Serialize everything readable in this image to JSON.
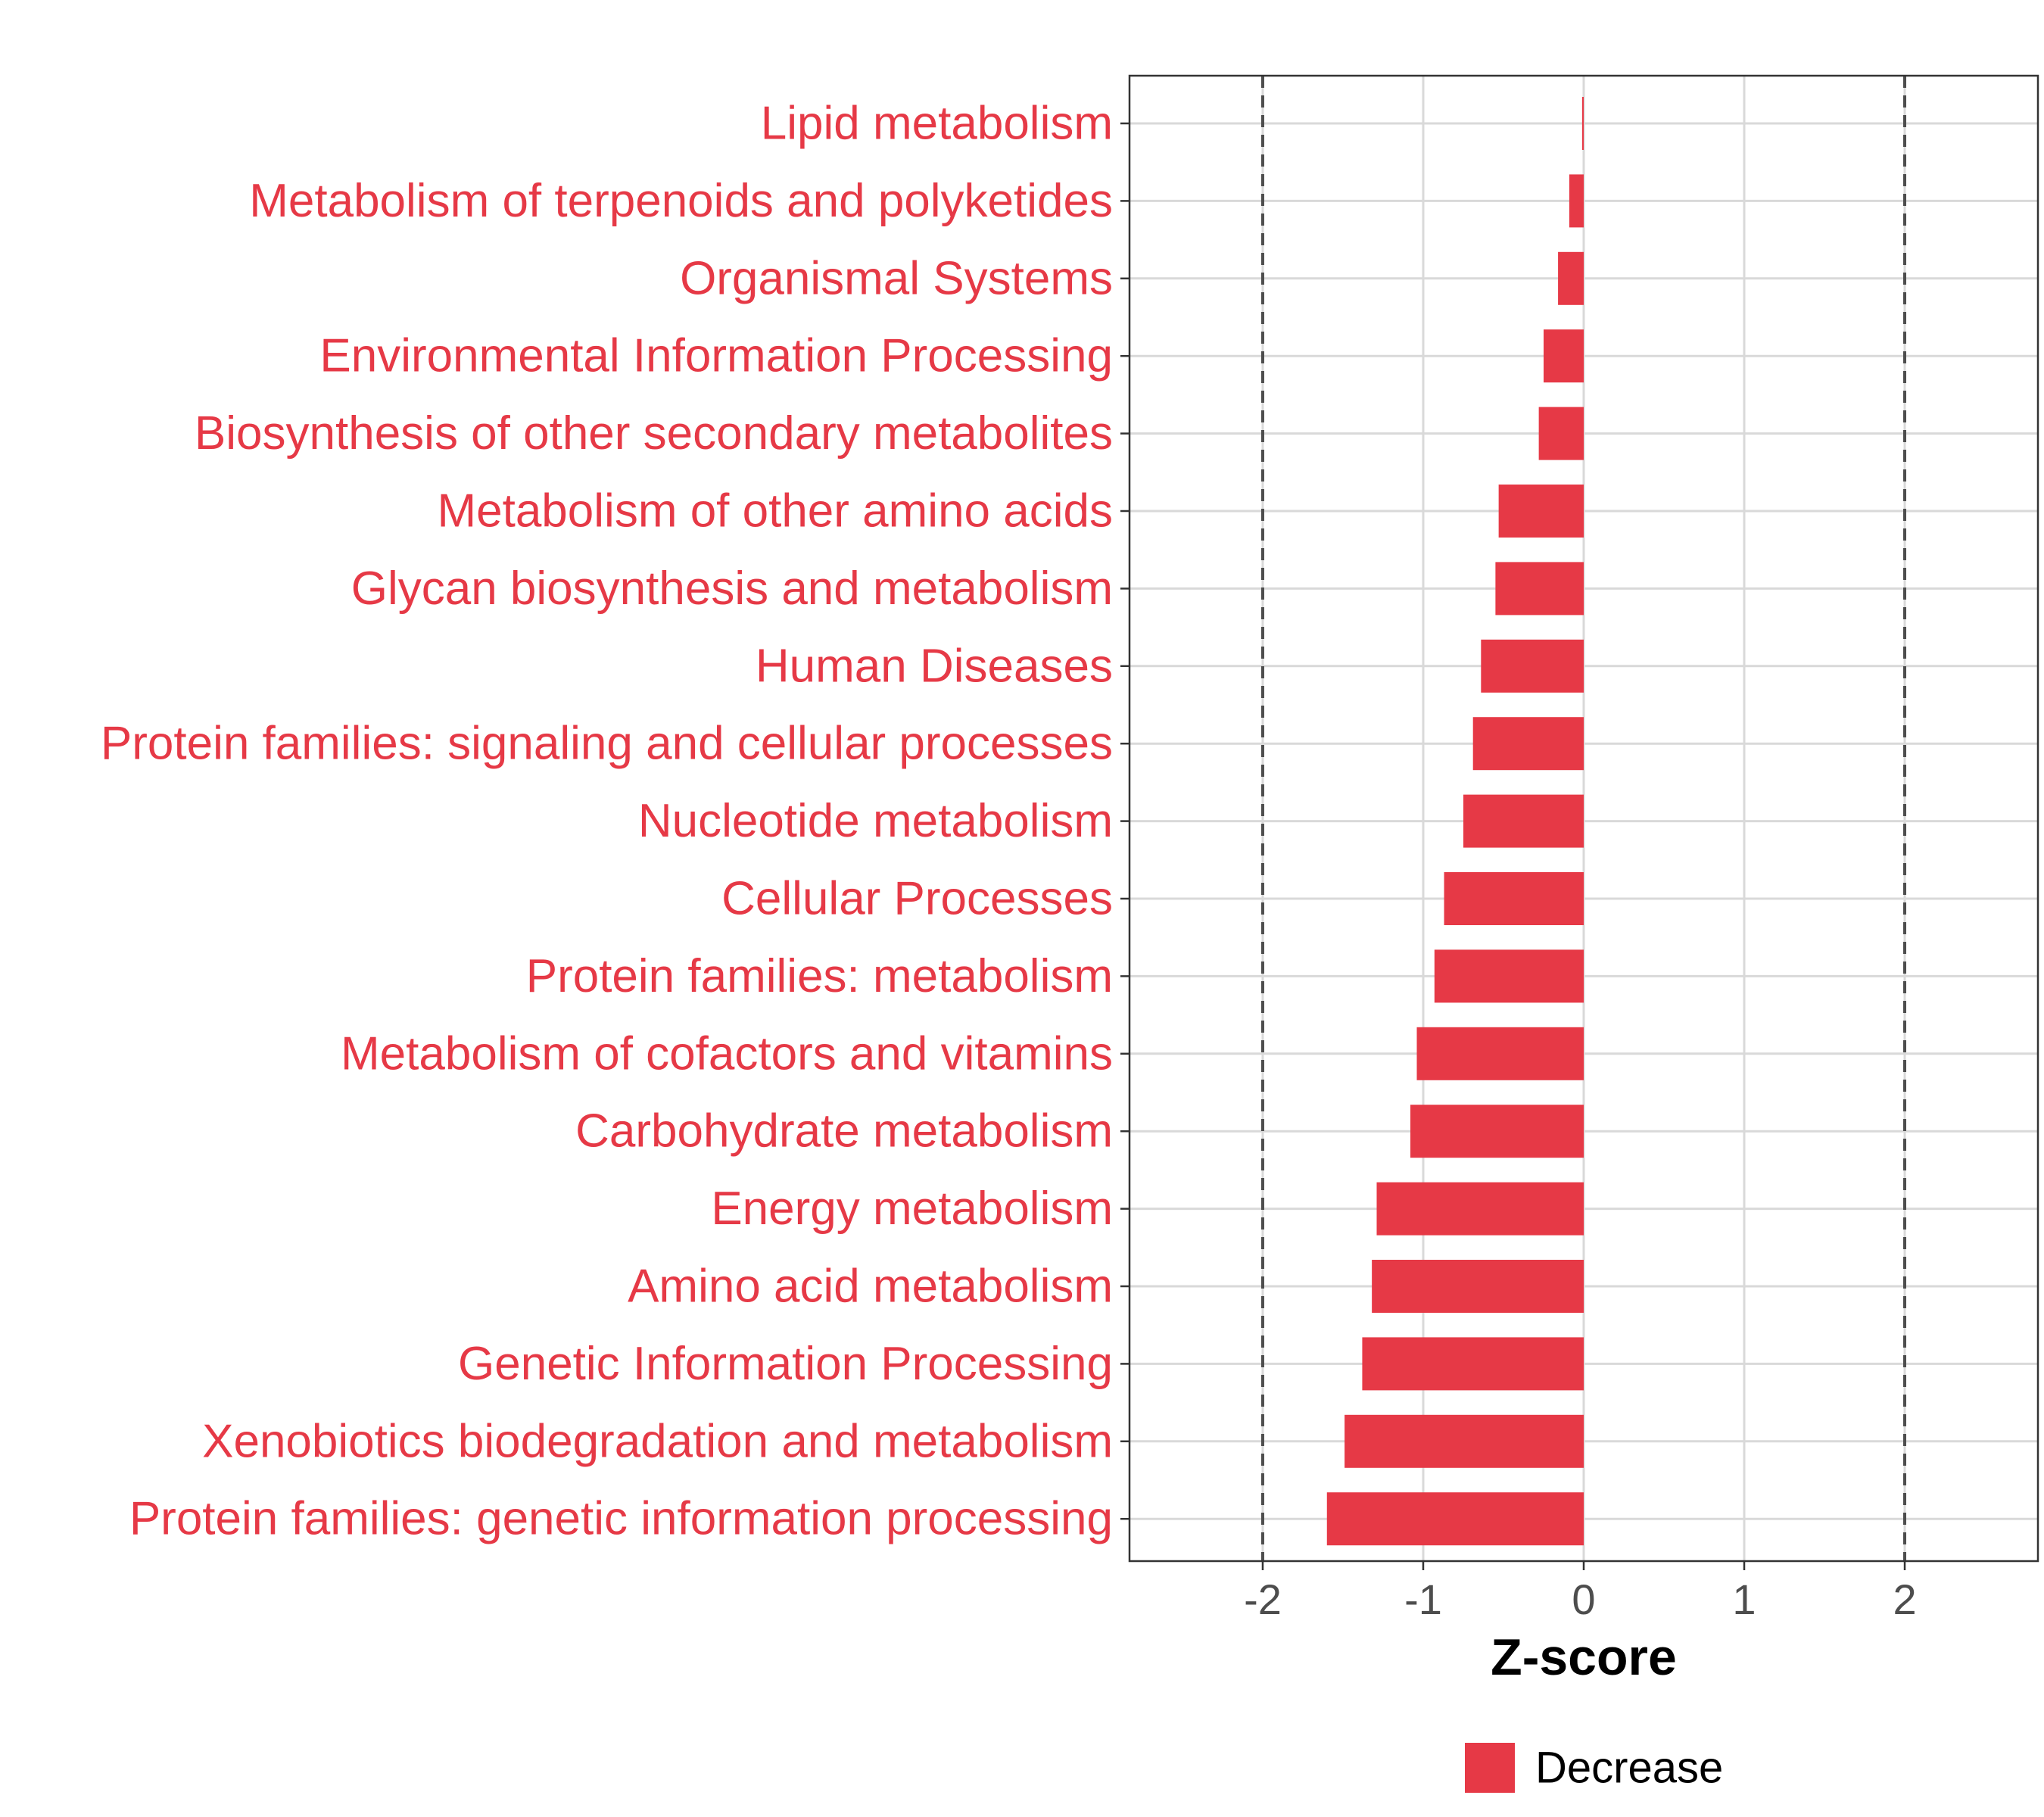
{
  "chart_data": {
    "type": "bar",
    "orientation": "horizontal",
    "categories": [
      "Lipid metabolism",
      "Metabolism of terpenoids and polyketides",
      "Organismal Systems",
      "Environmental Information Processing",
      "Biosynthesis of other secondary metabolites",
      "Metabolism of other amino acids",
      "Glycan biosynthesis and metabolism",
      "Human Diseases",
      "Protein families: signaling and cellular processes",
      "Nucleotide metabolism",
      "Cellular Processes",
      "Protein families: metabolism",
      "Metabolism of cofactors and vitamins",
      "Carbohydrate metabolism",
      "Energy metabolism",
      "Amino acid metabolism",
      "Genetic Information Processing",
      "Xenobiotics biodegradation and metabolism",
      "Protein families: genetic information processing"
    ],
    "values": [
      -0.01,
      -0.09,
      -0.16,
      -0.25,
      -0.28,
      -0.53,
      -0.55,
      -0.64,
      -0.69,
      -0.75,
      -0.87,
      -0.93,
      -1.04,
      -1.08,
      -1.29,
      -1.32,
      -1.38,
      -1.49,
      -1.6
    ],
    "xlabel": "Z-score",
    "xlim": [
      -2.83,
      2.83
    ],
    "xticks": [
      "-2",
      "-1",
      "0",
      "1",
      "2"
    ],
    "xtick_values": [
      -2,
      -1,
      0,
      1,
      2
    ],
    "reference_lines": [
      -2,
      2
    ],
    "grid": true,
    "legend": {
      "position": "bottom",
      "entries": [
        {
          "name": "Decrease",
          "color": "#e63946"
        }
      ]
    },
    "colors": {
      "bar": "#e63946",
      "label": "#e63946",
      "grid": "#d9d9d9",
      "refline": "#4d4d4d"
    }
  }
}
